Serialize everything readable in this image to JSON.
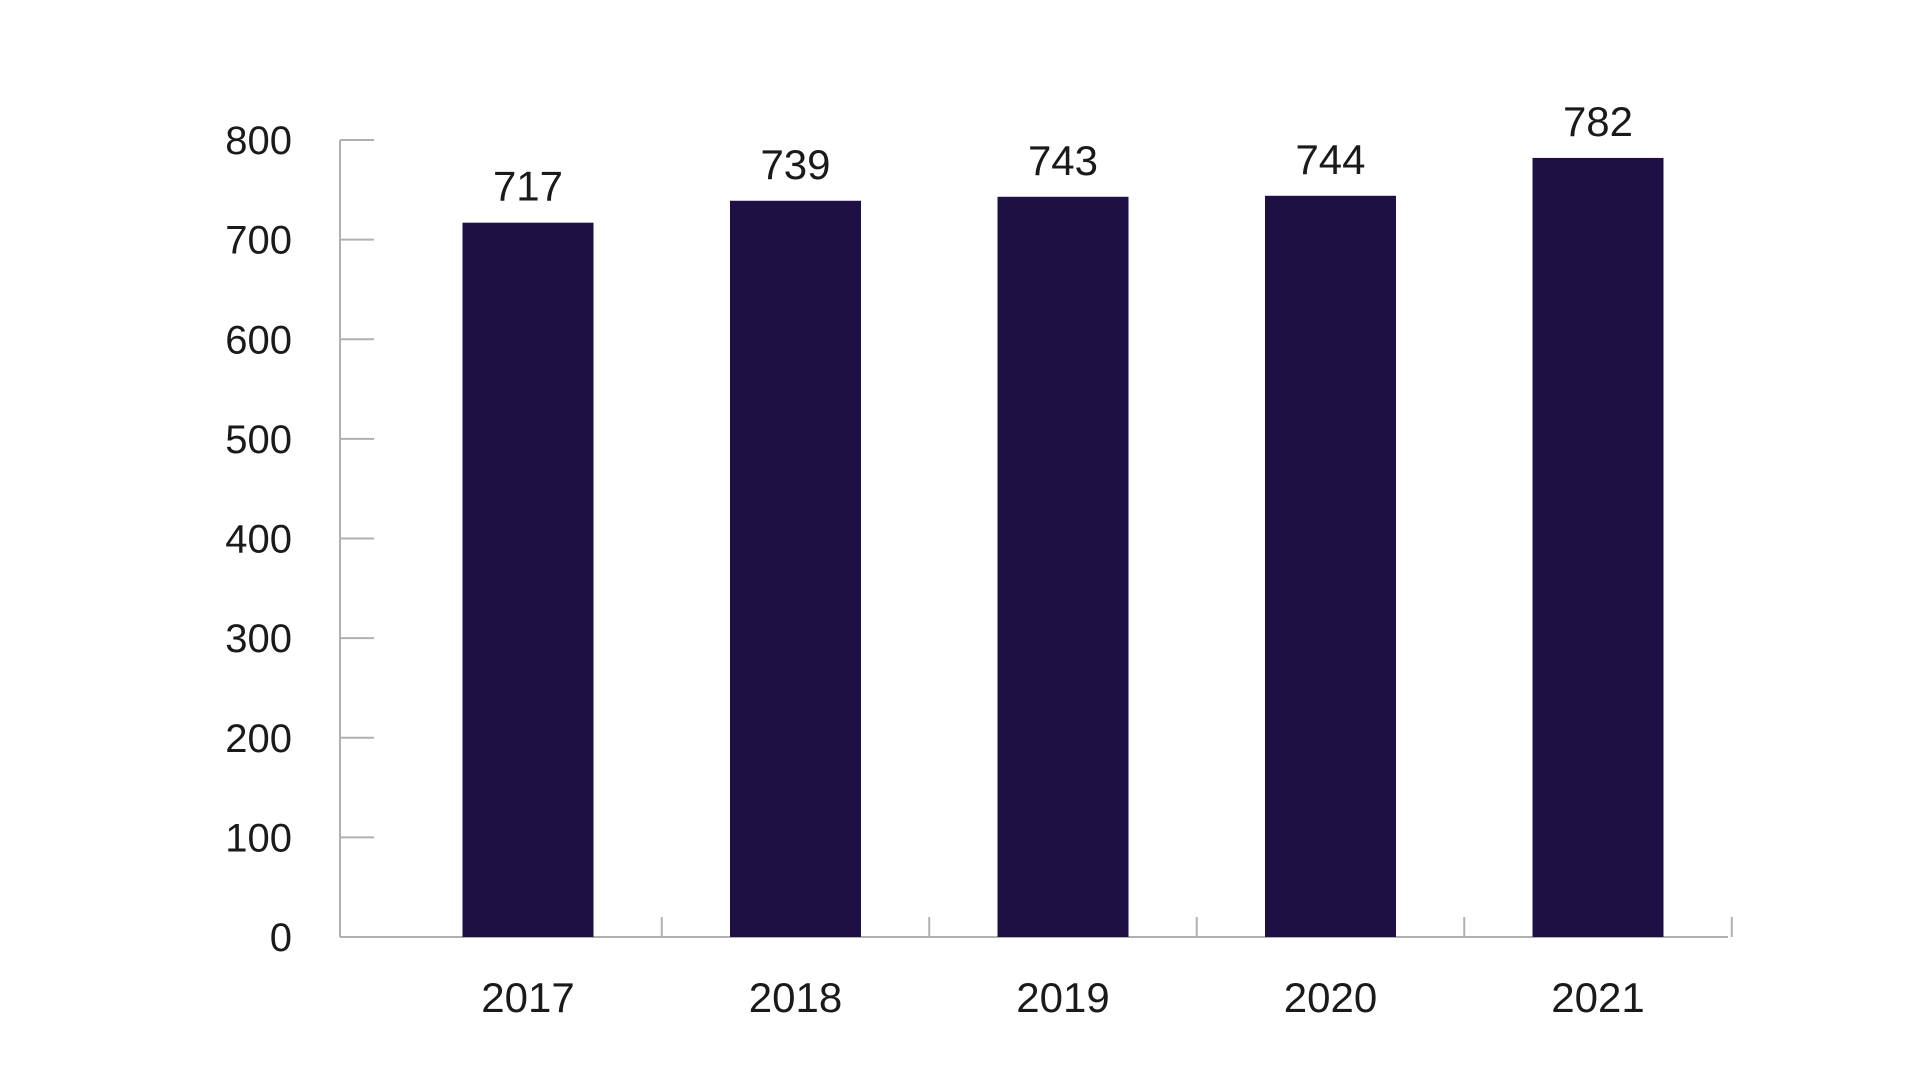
{
  "chart_data": {
    "type": "bar",
    "categories": [
      "2017",
      "2018",
      "2019",
      "2020",
      "2021"
    ],
    "values": [
      717,
      739,
      743,
      744,
      782
    ],
    "value_labels": [
      "717",
      "739",
      "743",
      "744",
      "782"
    ],
    "title": "",
    "xlabel": "",
    "ylabel": "",
    "ylim": [
      0,
      800
    ],
    "yticks": [
      0,
      100,
      200,
      300,
      400,
      500,
      600,
      700,
      800
    ],
    "ytick_labels": [
      "0",
      "100",
      "200",
      "300",
      "400",
      "500",
      "600",
      "700",
      "800"
    ],
    "grid": false,
    "legend": "none",
    "bar_color": "#1e1044",
    "axis_color": "#b0b0b0",
    "text_color": "#1a1a1a"
  }
}
